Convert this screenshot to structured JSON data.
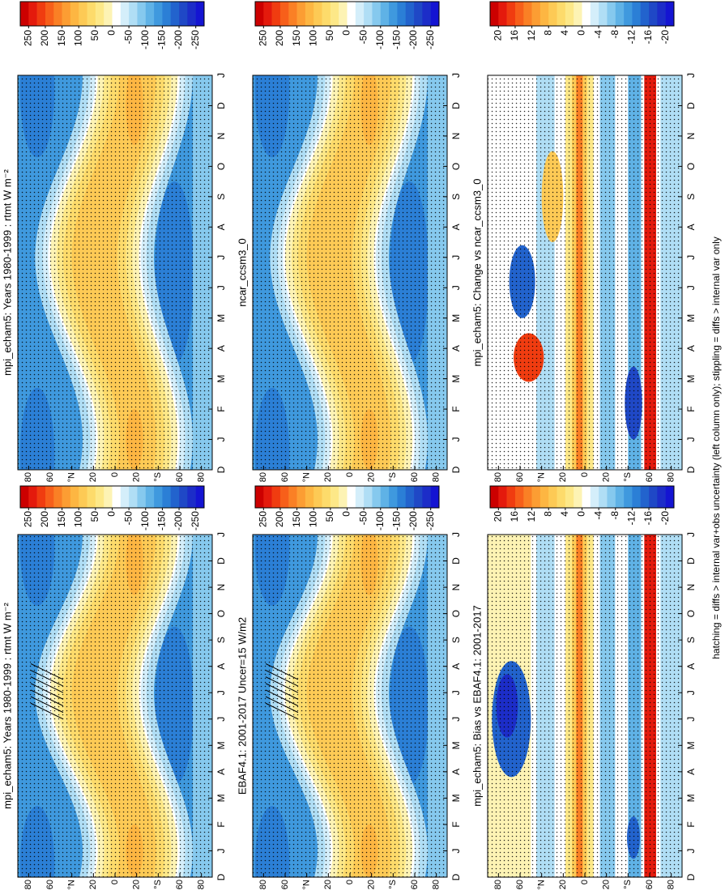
{
  "chart_data": [
    {
      "type": "contour",
      "title": "mpi_echam5: Years 1980-1999 : rtmt W m⁻²",
      "categories": [
        "D",
        "J",
        "F",
        "M",
        "A",
        "M",
        "J",
        "J",
        "A",
        "S",
        "O",
        "N",
        "D",
        "J"
      ],
      "ylim": [
        90,
        -90
      ],
      "yticks": [
        80,
        60,
        {
          "value": 40,
          "label": "°N"
        },
        20,
        0,
        {
          "value": -20,
          "label": "20"
        },
        {
          "value": -40,
          "label": "°S"
        },
        {
          "value": -60,
          "label": "60"
        },
        {
          "value": -80,
          "label": "80"
        }
      ],
      "colorbar": {
        "clim": [
          275,
          -275
        ],
        "ticks": [
          250,
          200,
          150,
          100,
          50,
          0,
          -50,
          -100,
          -150,
          -200,
          -250
        ],
        "colors": [
          "#cc0000",
          "#e41a0c",
          "#f03c10",
          "#f75f1a",
          "#fa8025",
          "#fc9d33",
          "#fdb642",
          "#fdca55",
          "#fddb6b",
          "#fde888",
          "#fdf3b4",
          "#ffffff",
          "#d4eefa",
          "#b0def5",
          "#86c9ee",
          "#5fb2e6",
          "#3f99de",
          "#2b7fd6",
          "#2263cd",
          "#1f48c6",
          "#1c2dc8",
          "#1414d2"
        ]
      }
    },
    {
      "type": "contour",
      "title": "mpi_echam5: Years 1980-1999 : rtmt W m⁻²",
      "categories": [
        "D",
        "J",
        "F",
        "M",
        "A",
        "M",
        "J",
        "J",
        "A",
        "S",
        "O",
        "N",
        "D",
        "J"
      ],
      "ylim": [
        90,
        -90
      ],
      "yticks": [
        80,
        60,
        {
          "value": 40,
          "label": "°N"
        },
        20,
        0,
        {
          "value": -20,
          "label": "20"
        },
        {
          "value": -40,
          "label": "°S"
        },
        {
          "value": -60,
          "label": "60"
        },
        {
          "value": -80,
          "label": "80"
        }
      ],
      "colorbar": {
        "clim": [
          275,
          -275
        ],
        "ticks": [
          250,
          200,
          150,
          100,
          50,
          0,
          -50,
          -100,
          -150,
          -200,
          -250
        ],
        "colors": [
          "#cc0000",
          "#e41a0c",
          "#f03c10",
          "#f75f1a",
          "#fa8025",
          "#fc9d33",
          "#fdb642",
          "#fdca55",
          "#fddb6b",
          "#fde888",
          "#fdf3b4",
          "#ffffff",
          "#d4eefa",
          "#b0def5",
          "#86c9ee",
          "#5fb2e6",
          "#3f99de",
          "#2b7fd6",
          "#2263cd",
          "#1f48c6",
          "#1c2dc8",
          "#1414d2"
        ]
      }
    },
    {
      "type": "contour",
      "title": "EBAF4.1: 2001-2017 Uncer=15 W/m2",
      "categories": [
        "D",
        "J",
        "F",
        "M",
        "A",
        "M",
        "J",
        "J",
        "A",
        "S",
        "O",
        "N",
        "D",
        "J"
      ],
      "ylim": [
        90,
        -90
      ],
      "yticks": [
        80,
        60,
        {
          "value": 40,
          "label": "°N"
        },
        20,
        0,
        {
          "value": -20,
          "label": "20"
        },
        {
          "value": -40,
          "label": "°S"
        },
        {
          "value": -60,
          "label": "60"
        },
        {
          "value": -80,
          "label": "80"
        }
      ],
      "colorbar": {
        "clim": [
          275,
          -275
        ],
        "ticks": [
          250,
          200,
          150,
          100,
          50,
          0,
          -50,
          -100,
          -150,
          -200,
          -250
        ],
        "colors": [
          "#cc0000",
          "#e41a0c",
          "#f03c10",
          "#f75f1a",
          "#fa8025",
          "#fc9d33",
          "#fdb642",
          "#fdca55",
          "#fddb6b",
          "#fde888",
          "#fdf3b4",
          "#ffffff",
          "#d4eefa",
          "#b0def5",
          "#86c9ee",
          "#5fb2e6",
          "#3f99de",
          "#2b7fd6",
          "#2263cd",
          "#1f48c6",
          "#1c2dc8",
          "#1414d2"
        ]
      }
    },
    {
      "type": "contour",
      "title": "ncar_ccsm3_0",
      "categories": [
        "D",
        "J",
        "F",
        "M",
        "A",
        "M",
        "J",
        "J",
        "A",
        "S",
        "O",
        "N",
        "D",
        "J"
      ],
      "ylim": [
        90,
        -90
      ],
      "yticks": [
        80,
        60,
        {
          "value": 40,
          "label": "°N"
        },
        20,
        0,
        {
          "value": -20,
          "label": "20"
        },
        {
          "value": -40,
          "label": "°S"
        },
        {
          "value": -60,
          "label": "60"
        },
        {
          "value": -80,
          "label": "80"
        }
      ],
      "colorbar": {
        "clim": [
          275,
          -275
        ],
        "ticks": [
          250,
          200,
          150,
          100,
          50,
          0,
          -50,
          -100,
          -150,
          -200,
          -250
        ],
        "colors": [
          "#cc0000",
          "#e41a0c",
          "#f03c10",
          "#f75f1a",
          "#fa8025",
          "#fc9d33",
          "#fdb642",
          "#fdca55",
          "#fddb6b",
          "#fde888",
          "#fdf3b4",
          "#ffffff",
          "#d4eefa",
          "#b0def5",
          "#86c9ee",
          "#5fb2e6",
          "#3f99de",
          "#2b7fd6",
          "#2263cd",
          "#1f48c6",
          "#1c2dc8",
          "#1414d2"
        ]
      }
    },
    {
      "type": "contour",
      "title": "mpi_echam5: Bias vs EBAF4.1: 2001-2017",
      "categories": [
        "D",
        "J",
        "F",
        "M",
        "A",
        "M",
        "J",
        "J",
        "A",
        "S",
        "O",
        "N",
        "D",
        "J"
      ],
      "ylim": [
        90,
        -90
      ],
      "yticks": [
        80,
        60,
        {
          "value": 40,
          "label": "°N"
        },
        20,
        0,
        {
          "value": -20,
          "label": "20"
        },
        {
          "value": -40,
          "label": "°S"
        },
        {
          "value": -60,
          "label": "60"
        },
        {
          "value": -80,
          "label": "80"
        }
      ],
      "colorbar": {
        "clim": [
          22,
          -22
        ],
        "ticks": [
          20,
          16,
          12,
          8,
          4,
          0,
          -4,
          -8,
          -12,
          -16,
          -20
        ],
        "colors": [
          "#cc0000",
          "#e41a0c",
          "#f03c10",
          "#f75f1a",
          "#fa8025",
          "#fc9d33",
          "#fdb642",
          "#fdca55",
          "#fddb6b",
          "#fde888",
          "#fdf3b4",
          "#ffffff",
          "#d4eefa",
          "#b0def5",
          "#86c9ee",
          "#5fb2e6",
          "#3f99de",
          "#2b7fd6",
          "#2263cd",
          "#1f48c6",
          "#1c2dc8",
          "#1414d2"
        ]
      }
    },
    {
      "type": "contour",
      "title": "mpi_echam5: Change vs ncar_ccsm3_0",
      "categories": [
        "D",
        "J",
        "F",
        "M",
        "A",
        "M",
        "J",
        "J",
        "A",
        "S",
        "O",
        "N",
        "D",
        "J"
      ],
      "ylim": [
        90,
        -90
      ],
      "yticks": [
        80,
        60,
        {
          "value": 40,
          "label": "°N"
        },
        20,
        0,
        {
          "value": -20,
          "label": "20"
        },
        {
          "value": -40,
          "label": "°S"
        },
        {
          "value": -60,
          "label": "60"
        },
        {
          "value": -80,
          "label": "80"
        }
      ],
      "colorbar": {
        "clim": [
          22,
          -22
        ],
        "ticks": [
          20,
          16,
          12,
          8,
          4,
          0,
          -4,
          -8,
          -12,
          -16,
          -20
        ],
        "colors": [
          "#cc0000",
          "#e41a0c",
          "#f03c10",
          "#f75f1a",
          "#fa8025",
          "#fc9d33",
          "#fdb642",
          "#fdca55",
          "#fddb6b",
          "#fde888",
          "#fdf3b4",
          "#ffffff",
          "#d4eefa",
          "#b0def5",
          "#86c9ee",
          "#5fb2e6",
          "#3f99de",
          "#2b7fd6",
          "#2263cd",
          "#1f48c6",
          "#1c2dc8",
          "#1414d2"
        ]
      }
    }
  ],
  "footnote": "hatching = diffs > internal var+obs uncertainty (left column only); stippling = diffs > internal var only"
}
